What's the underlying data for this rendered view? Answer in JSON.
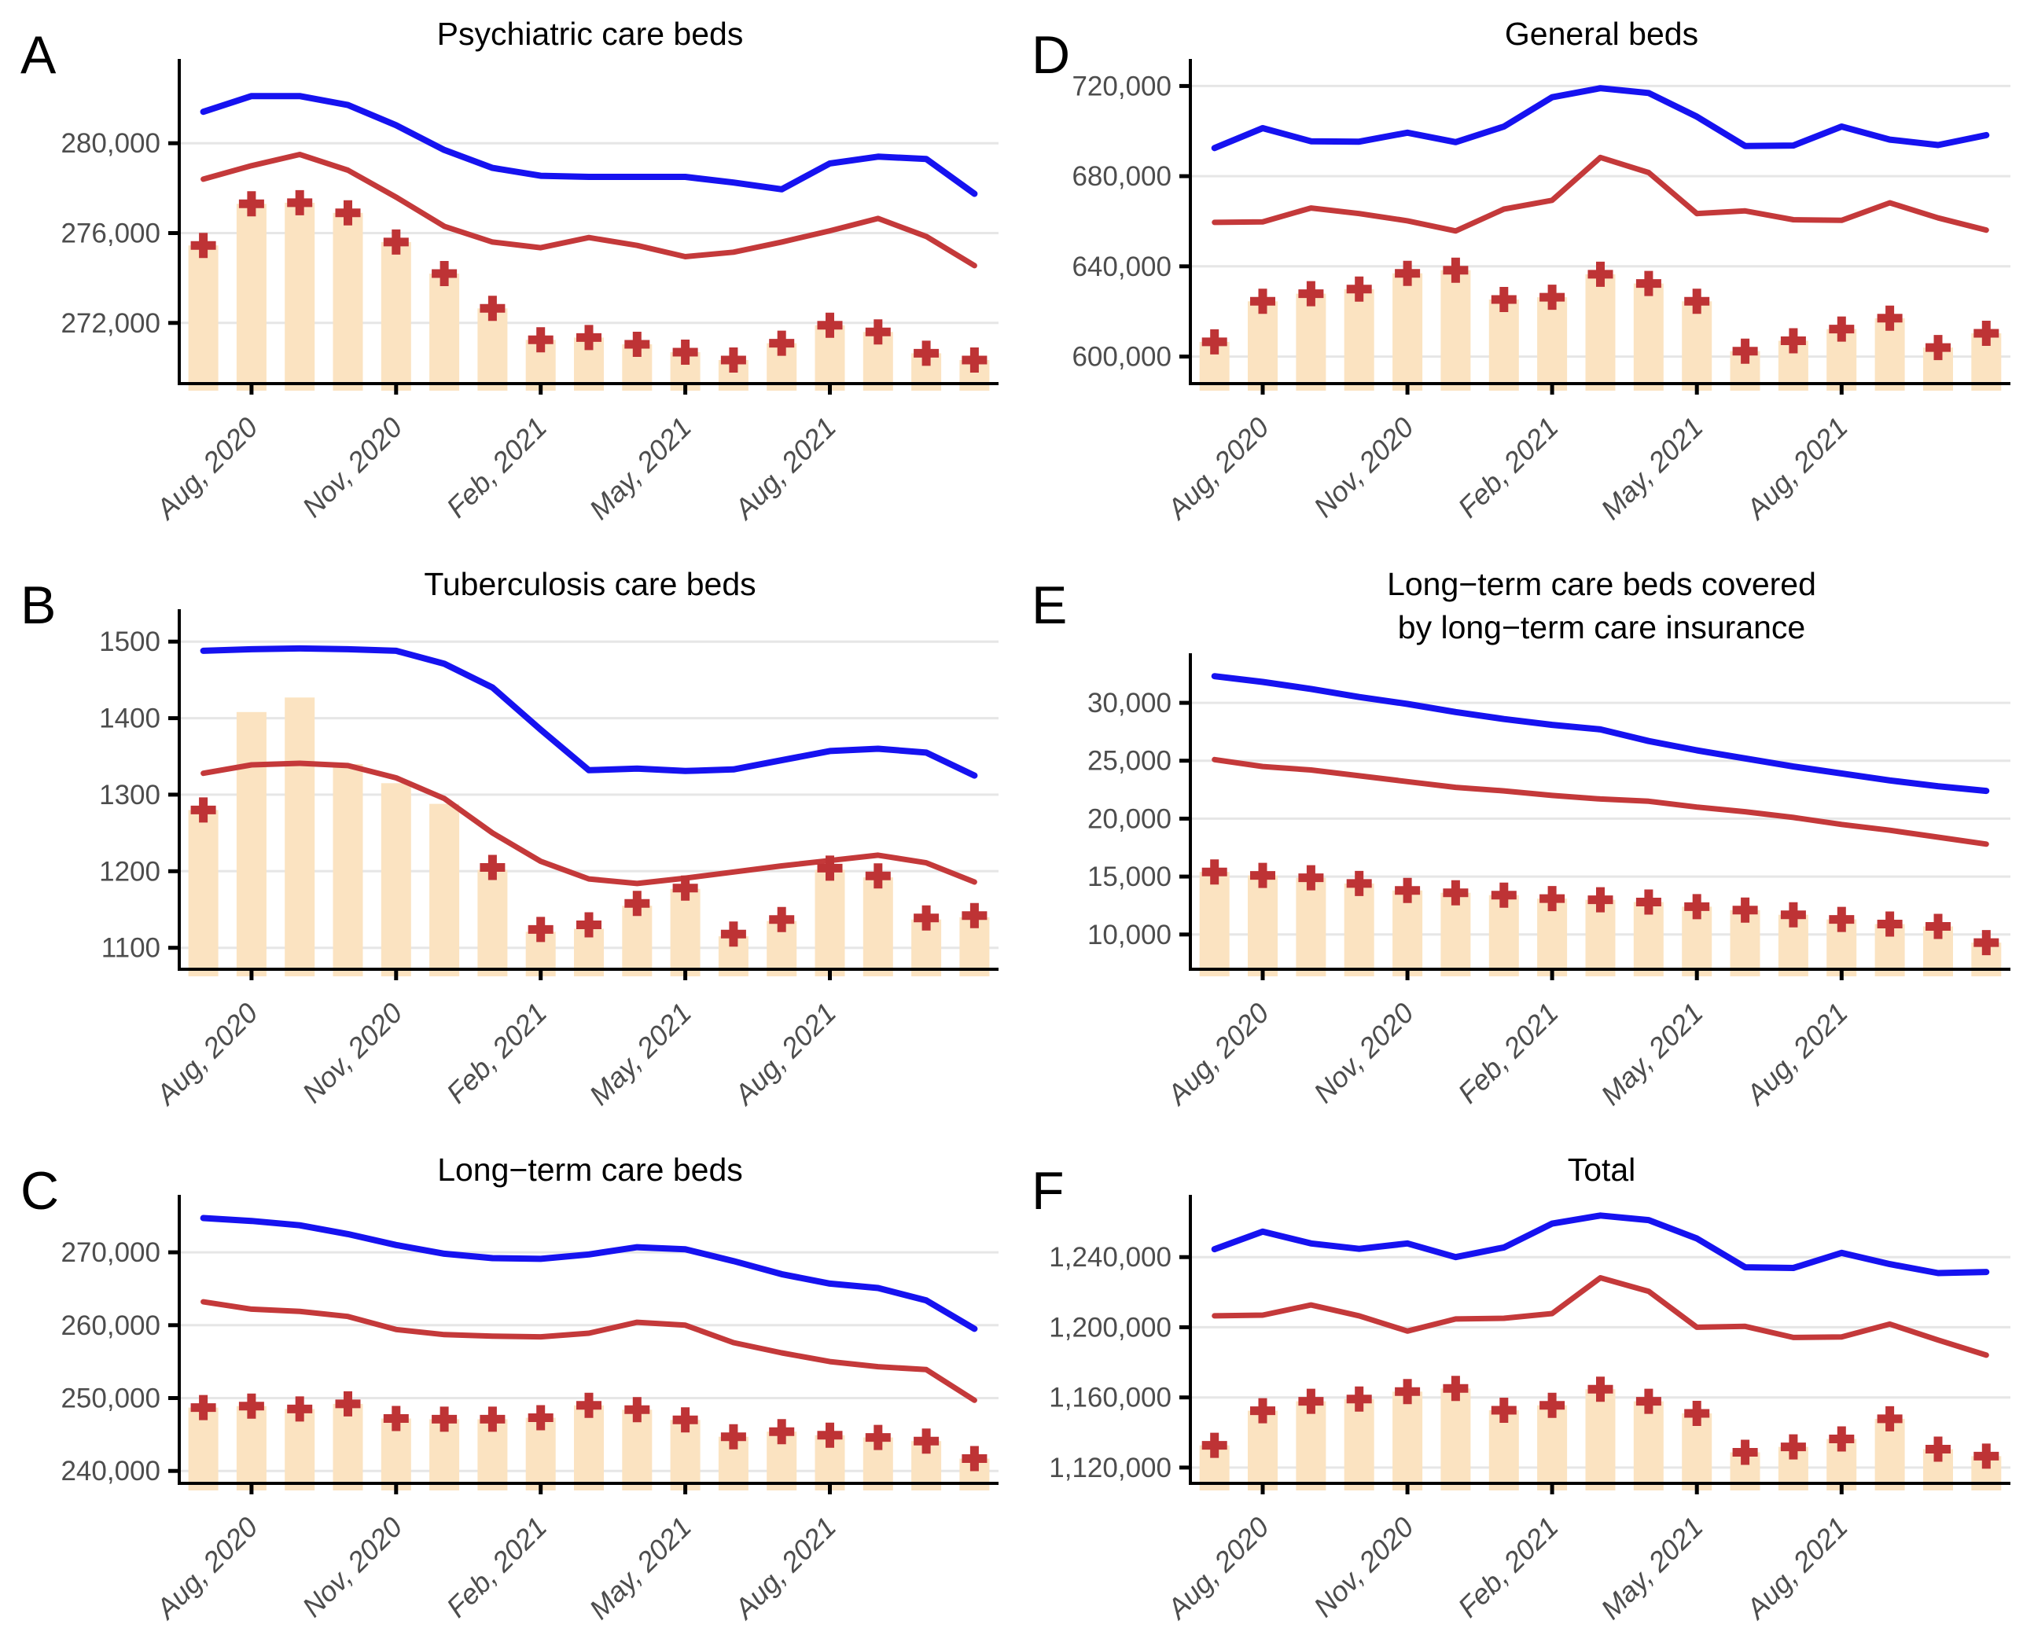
{
  "figure": {
    "background": "#ffffff",
    "colors": {
      "bar_fill": "#FBE3C1",
      "blue_line": "#1612F0",
      "red_line": "#C4393A",
      "cross": "#BE3335",
      "grid": "#E6E6E6",
      "axis": "#000000",
      "tick_label": "#4D4D4D",
      "title": "#000000"
    },
    "x_axis": {
      "n_points": 17,
      "tick_indices": [
        1,
        4,
        7,
        10,
        13
      ],
      "tick_labels": [
        "Aug, 2020",
        "Nov, 2020",
        "Feb, 2021",
        "May, 2021",
        "Aug, 2021"
      ]
    }
  },
  "chart_data": [
    {
      "letter": "A",
      "title_line1": "Psychiatric care beds",
      "title_line2": "",
      "type": "bar+line",
      "ylim": [
        269300,
        283400
      ],
      "y_ticks": [
        {
          "v": 272000,
          "label": "272,000"
        },
        {
          "v": 276000,
          "label": "276,000"
        },
        {
          "v": 280000,
          "label": "280,000"
        }
      ],
      "series": {
        "bars": [
          275450,
          277300,
          277350,
          276900,
          275600,
          274200,
          272650,
          271250,
          271350,
          271050,
          270700,
          270350,
          271100,
          271900,
          271600,
          270650,
          270350
        ],
        "crosses": [
          275450,
          277300,
          277350,
          276900,
          275600,
          274200,
          272650,
          271250,
          271350,
          271050,
          270700,
          270350,
          271100,
          271900,
          271600,
          270650,
          270350
        ],
        "red": [
          278400,
          279000,
          279500,
          278800,
          277600,
          276300,
          275600,
          275350,
          275800,
          275450,
          274950,
          275150,
          275600,
          276100,
          276650,
          275850,
          274550
        ],
        "blue": [
          281400,
          282100,
          282100,
          281700,
          280800,
          279700,
          278900,
          278550,
          278500,
          278500,
          278500,
          278250,
          277950,
          279100,
          279400,
          279300,
          277750
        ]
      }
    },
    {
      "letter": "D",
      "title_line1": "General beds",
      "title_line2": "",
      "type": "bar+line",
      "ylim": [
        588000,
        728500
      ],
      "y_ticks": [
        {
          "v": 600000,
          "label": "600,000"
        },
        {
          "v": 640000,
          "label": "640,000"
        },
        {
          "v": 680000,
          "label": "680,000"
        },
        {
          "v": 720000,
          "label": "720,000"
        }
      ],
      "series": {
        "bars": [
          606500,
          624500,
          627900,
          629900,
          636900,
          638300,
          625300,
          626300,
          636500,
          632400,
          624500,
          602400,
          607000,
          612200,
          617000,
          604000,
          610300
        ],
        "crosses": [
          606500,
          624500,
          627900,
          629900,
          636900,
          638300,
          625300,
          626300,
          636500,
          632400,
          624500,
          602400,
          607000,
          612200,
          617000,
          604000,
          610300
        ],
        "red": [
          659500,
          659700,
          665900,
          663400,
          660200,
          655700,
          665400,
          669300,
          688300,
          681600,
          663400,
          664600,
          660700,
          660400,
          668200,
          661500,
          656100
        ],
        "blue": [
          692500,
          701300,
          695500,
          695300,
          699300,
          695100,
          702000,
          715000,
          719000,
          716900,
          706400,
          693400,
          693600,
          702000,
          696200,
          693800,
          698200
        ]
      }
    },
    {
      "letter": "B",
      "title_line1": "Tuberculosis care beds",
      "title_line2": "",
      "type": "bar+line",
      "ylim": [
        1072,
        1532
      ],
      "y_ticks": [
        {
          "v": 1100,
          "label": "1100"
        },
        {
          "v": 1200,
          "label": "1200"
        },
        {
          "v": 1300,
          "label": "1300"
        },
        {
          "v": 1400,
          "label": "1400"
        },
        {
          "v": 1500,
          "label": "1500"
        }
      ],
      "series": {
        "bars": [
          1280,
          1408,
          1427,
          1340,
          1315,
          1288,
          1202,
          1121,
          1125,
          1155,
          1177,
          1115,
          1135,
          1202,
          1192,
          1137,
          1140
        ],
        "crosses": [
          1280,
          null,
          null,
          null,
          null,
          null,
          1205,
          1124,
          1130,
          1158,
          1178,
          1118,
          1137,
          1204,
          1194,
          1139,
          1142
        ],
        "red": [
          1328,
          1339,
          1341,
          1338,
          1322,
          1295,
          1250,
          1213,
          1190,
          1184,
          1191,
          1199,
          1207,
          1214,
          1221,
          1211,
          1186
        ],
        "blue": [
          1488,
          1490,
          1491,
          1490,
          1488,
          1471,
          1440,
          1385,
          1332,
          1334,
          1331,
          1333,
          1345,
          1357,
          1360,
          1355,
          1325
        ]
      }
    },
    {
      "letter": "E",
      "title_line1": "Long−term care beds covered",
      "title_line2": "by long−term care insurance",
      "type": "bar+line",
      "ylim": [
        7000,
        33600
      ],
      "y_ticks": [
        {
          "v": 10000,
          "label": "10,000"
        },
        {
          "v": 15000,
          "label": "15,000"
        },
        {
          "v": 20000,
          "label": "20,000"
        },
        {
          "v": 25000,
          "label": "25,000"
        },
        {
          "v": 30000,
          "label": "30,000"
        }
      ],
      "series": {
        "bars": [
          15400,
          15100,
          14900,
          14400,
          13800,
          13600,
          13400,
          13100,
          13000,
          12800,
          12400,
          12100,
          11700,
          11300,
          10900,
          10700,
          9300
        ],
        "crosses": [
          15400,
          15100,
          14900,
          14400,
          13800,
          13600,
          13400,
          13100,
          13000,
          12800,
          12400,
          12100,
          11700,
          11300,
          10900,
          10700,
          9300
        ],
        "red": [
          25100,
          24500,
          24200,
          23700,
          23200,
          22700,
          22400,
          22000,
          21700,
          21500,
          21000,
          20600,
          20100,
          19500,
          19000,
          18400,
          17800
        ],
        "blue": [
          32300,
          31800,
          31200,
          30500,
          29900,
          29200,
          28600,
          28100,
          27700,
          26700,
          25900,
          25200,
          24500,
          23900,
          23300,
          22800,
          22400
        ]
      }
    },
    {
      "letter": "C",
      "title_line1": "Long−term care beds",
      "title_line2": "",
      "type": "bar+line",
      "ylim": [
        238300,
        276800
      ],
      "y_ticks": [
        {
          "v": 240000,
          "label": "240,000"
        },
        {
          "v": 250000,
          "label": "250,000"
        },
        {
          "v": 260000,
          "label": "260,000"
        },
        {
          "v": 270000,
          "label": "270,000"
        }
      ],
      "series": {
        "bars": [
          248700,
          248900,
          248500,
          249200,
          247200,
          247100,
          247100,
          247300,
          249000,
          248400,
          247000,
          244700,
          245400,
          244900,
          244600,
          244100,
          241700
        ],
        "crosses": [
          248700,
          248900,
          248500,
          249200,
          247200,
          247100,
          247100,
          247300,
          249000,
          248400,
          247000,
          244700,
          245400,
          244900,
          244600,
          244100,
          241700
        ],
        "red": [
          263200,
          262200,
          261900,
          261200,
          259400,
          258700,
          258500,
          258400,
          258900,
          260400,
          260000,
          257600,
          256200,
          255000,
          254300,
          253900,
          249700
        ],
        "blue": [
          274700,
          274300,
          273700,
          272500,
          271000,
          269800,
          269200,
          269100,
          269700,
          270700,
          270400,
          268800,
          267000,
          265700,
          265100,
          263400,
          259500
        ]
      }
    },
    {
      "letter": "F",
      "title_line1": "Total",
      "title_line2": "",
      "type": "bar+line",
      "ylim": [
        1111000,
        1271000
      ],
      "y_ticks": [
        {
          "v": 1120000,
          "label": "1,120,000"
        },
        {
          "v": 1160000,
          "label": "1,160,000"
        },
        {
          "v": 1200000,
          "label": "1,200,000"
        },
        {
          "v": 1240000,
          "label": "1,240,000"
        }
      ],
      "series": {
        "bars": [
          1132700,
          1152400,
          1157800,
          1159100,
          1163300,
          1165100,
          1152700,
          1155500,
          1164700,
          1157800,
          1150900,
          1128700,
          1131800,
          1136300,
          1147800,
          1130500,
          1126500
        ],
        "crosses": [
          1132700,
          1152400,
          1157800,
          1159100,
          1163300,
          1165100,
          1152700,
          1155500,
          1164700,
          1157800,
          1150900,
          1128700,
          1131800,
          1136300,
          1147800,
          1130500,
          1126500
        ],
        "red": [
          1206500,
          1206900,
          1212700,
          1206500,
          1197800,
          1204700,
          1205100,
          1207800,
          1228200,
          1220500,
          1200000,
          1200500,
          1194200,
          1194500,
          1201800,
          1192700,
          1184100
        ],
        "blue": [
          1244500,
          1254500,
          1247800,
          1244700,
          1247800,
          1240000,
          1245500,
          1259100,
          1263700,
          1261100,
          1250600,
          1234200,
          1233800,
          1242400,
          1236000,
          1230900,
          1231500
        ]
      }
    }
  ]
}
